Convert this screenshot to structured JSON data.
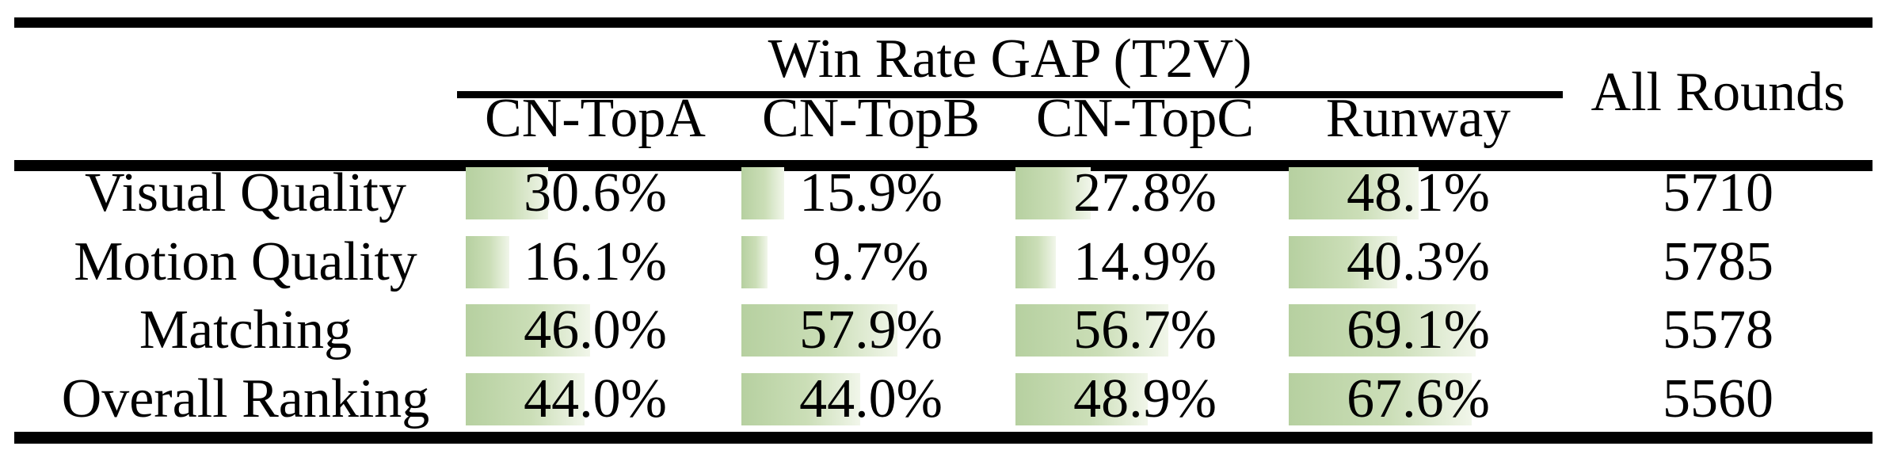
{
  "chart_data": {
    "type": "table",
    "title": "Win Rate GAP (T2V)",
    "extra_column": "All Rounds",
    "columns": [
      "CN-TopA",
      "CN-TopB",
      "CN-TopC",
      "Runway"
    ],
    "value_format": "percent_one_decimal",
    "bar_style": {
      "fill_left_hex": "#b6d0a0",
      "fill_right_hex": "#f1f6ea",
      "scale": "bar width proportional to value, 100% = full column width"
    },
    "rows": [
      {
        "label": "Visual Quality",
        "win_rate_gap_pct": [
          30.6,
          15.9,
          27.8,
          48.1
        ],
        "all_rounds": 5710
      },
      {
        "label": "Motion Quality",
        "win_rate_gap_pct": [
          16.1,
          9.7,
          14.9,
          40.3
        ],
        "all_rounds": 5785
      },
      {
        "label": "Matching",
        "win_rate_gap_pct": [
          46.0,
          57.9,
          56.7,
          69.1
        ],
        "all_rounds": 5578
      },
      {
        "label": "Overall Ranking",
        "win_rate_gap_pct": [
          44.0,
          44.0,
          48.9,
          67.6
        ],
        "all_rounds": 5560
      }
    ]
  }
}
